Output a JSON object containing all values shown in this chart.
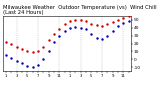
{
  "title": "Milwaukee Weather  Outdoor Temperature (vs)  Wind Chill (Last 24 Hours)",
  "title_fontsize": 3.8,
  "ylim": [
    -15,
    55
  ],
  "yticks": [
    -10,
    0,
    10,
    20,
    30,
    40,
    50
  ],
  "ytick_labels": [
    "-10",
    "0",
    "10",
    "20",
    "30",
    "40",
    "50"
  ],
  "ytick_fontsize": 3.2,
  "xtick_fontsize": 2.8,
  "bg_color": "#ffffff",
  "grid_color": "#aaaaaa",
  "temp_color": "#cc0000",
  "chill_color": "#0000bb",
  "temp_data": [
    22,
    19,
    16,
    13,
    10,
    9,
    11,
    16,
    24,
    32,
    38,
    44,
    48,
    49,
    49,
    48,
    45,
    43,
    42,
    44,
    47,
    50,
    52,
    54
  ],
  "chill_data": [
    5,
    2,
    -2,
    -5,
    -8,
    -10,
    -7,
    0,
    10,
    22,
    30,
    36,
    40,
    41,
    40,
    38,
    32,
    27,
    26,
    30,
    36,
    42,
    46,
    48
  ],
  "x_labels": [
    "1",
    "",
    "3",
    "",
    "5",
    "",
    "7",
    "",
    "9",
    "",
    "11",
    "",
    "1",
    "",
    "3",
    "",
    "5",
    "",
    "7",
    "",
    "9",
    "",
    "11",
    ""
  ],
  "vgrid_positions": [
    2,
    6,
    10,
    14,
    18,
    22
  ],
  "n_points": 24
}
